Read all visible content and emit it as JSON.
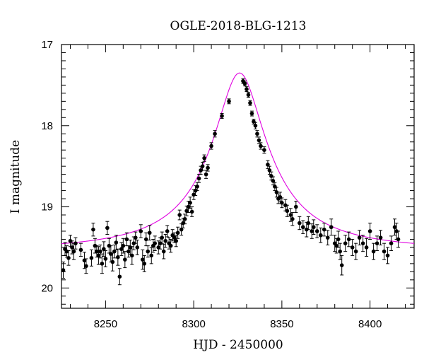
{
  "chart_data": {
    "type": "scatter",
    "title": "OGLE-2018-BLG-1213",
    "xlabel": "HJD - 2450000",
    "ylabel": "I magnitude",
    "xlim": [
      8225,
      8425
    ],
    "ylim": [
      20.25,
      17
    ],
    "y_inverted": true,
    "x_ticks": [
      8250,
      8300,
      8350,
      8400
    ],
    "x_tick_labels": [
      "8250",
      "8300",
      "8350",
      "8400"
    ],
    "y_ticks": [
      17,
      18,
      19,
      20
    ],
    "y_tick_labels": [
      "17",
      "18",
      "19",
      "20"
    ],
    "grid": false,
    "colors": {
      "points": "#000000",
      "model": "#e000e0",
      "frame": "#000000"
    },
    "series": [
      {
        "kind": "points-with-errorbars",
        "points": [
          [
            8226,
            19.78,
            0.1
          ],
          [
            8227,
            19.52,
            0.08
          ],
          [
            8228,
            19.55,
            0.07
          ],
          [
            8229,
            19.63,
            0.09
          ],
          [
            8230,
            19.42,
            0.07
          ],
          [
            8231,
            19.5,
            0.08
          ],
          [
            8232,
            19.55,
            0.1
          ],
          [
            8233,
            19.45,
            0.07
          ],
          [
            8236,
            19.53,
            0.08
          ],
          [
            8238,
            19.66,
            0.1
          ],
          [
            8239,
            19.73,
            0.09
          ],
          [
            8242,
            19.63,
            0.1
          ],
          [
            8243,
            19.28,
            0.08
          ],
          [
            8244,
            19.48,
            0.09
          ],
          [
            8245,
            19.55,
            0.07
          ],
          [
            8246,
            19.6,
            0.11
          ],
          [
            8247,
            19.55,
            0.08
          ],
          [
            8248,
            19.7,
            0.12
          ],
          [
            8249,
            19.52,
            0.09
          ],
          [
            8250,
            19.64,
            0.1
          ],
          [
            8251,
            19.26,
            0.08
          ],
          [
            8252,
            19.48,
            0.09
          ],
          [
            8253,
            19.58,
            0.1
          ],
          [
            8254,
            19.68,
            0.11
          ],
          [
            8255,
            19.55,
            0.08
          ],
          [
            8256,
            19.44,
            0.09
          ],
          [
            8257,
            19.62,
            0.1
          ],
          [
            8258,
            19.86,
            0.1
          ],
          [
            8259,
            19.52,
            0.08
          ],
          [
            8260,
            19.48,
            0.09
          ],
          [
            8261,
            19.65,
            0.1
          ],
          [
            8262,
            19.4,
            0.08
          ],
          [
            8263,
            19.55,
            0.07
          ],
          [
            8264,
            19.5,
            0.09
          ],
          [
            8265,
            19.6,
            0.11
          ],
          [
            8266,
            19.45,
            0.08
          ],
          [
            8267,
            19.38,
            0.07
          ],
          [
            8268,
            19.5,
            0.09
          ],
          [
            8270,
            19.3,
            0.08
          ],
          [
            8271,
            19.65,
            0.12
          ],
          [
            8272,
            19.7,
            0.1
          ],
          [
            8273,
            19.4,
            0.08
          ],
          [
            8274,
            19.55,
            0.07
          ],
          [
            8275,
            19.32,
            0.09
          ],
          [
            8276,
            19.6,
            0.1
          ],
          [
            8277,
            19.48,
            0.08
          ],
          [
            8278,
            19.45,
            0.09
          ],
          [
            8280,
            19.5,
            0.08
          ],
          [
            8281,
            19.45,
            0.07
          ],
          [
            8282,
            19.38,
            0.07
          ],
          [
            8283,
            19.55,
            0.09
          ],
          [
            8284,
            19.42,
            0.08
          ],
          [
            8285,
            19.3,
            0.07
          ],
          [
            8286,
            19.45,
            0.07
          ],
          [
            8287,
            19.48,
            0.08
          ],
          [
            8288,
            19.35,
            0.07
          ],
          [
            8289,
            19.38,
            0.06
          ],
          [
            8290,
            19.42,
            0.07
          ],
          [
            8291,
            19.32,
            0.07
          ],
          [
            8292,
            19.1,
            0.06
          ],
          [
            8293,
            19.28,
            0.07
          ],
          [
            8294,
            19.2,
            0.06
          ],
          [
            8295,
            19.15,
            0.06
          ],
          [
            8296,
            19.05,
            0.06
          ],
          [
            8297,
            19.0,
            0.07
          ],
          [
            8298,
            18.95,
            0.07
          ],
          [
            8299,
            19.06,
            0.06
          ],
          [
            8300,
            18.85,
            0.06
          ],
          [
            8301,
            18.8,
            0.06
          ],
          [
            8302,
            18.75,
            0.05
          ],
          [
            8303,
            18.65,
            0.05
          ],
          [
            8304,
            18.55,
            0.05
          ],
          [
            8305,
            18.5,
            0.05
          ],
          [
            8306,
            18.4,
            0.04
          ],
          [
            8307,
            18.6,
            0.05
          ],
          [
            8308,
            18.52,
            0.04
          ],
          [
            8310,
            18.25,
            0.04
          ],
          [
            8312,
            18.1,
            0.04
          ],
          [
            8316,
            17.88,
            0.03
          ],
          [
            8320,
            17.7,
            0.03
          ],
          [
            8328,
            17.45,
            0.03
          ],
          [
            8329,
            17.48,
            0.03
          ],
          [
            8330,
            17.55,
            0.03
          ],
          [
            8331,
            17.62,
            0.03
          ],
          [
            8332,
            17.72,
            0.03
          ],
          [
            8333,
            17.85,
            0.03
          ],
          [
            8334,
            17.95,
            0.03
          ],
          [
            8335,
            18.0,
            0.04
          ],
          [
            8336,
            18.1,
            0.04
          ],
          [
            8337,
            18.18,
            0.04
          ],
          [
            8338,
            18.25,
            0.04
          ],
          [
            8340,
            18.3,
            0.04
          ],
          [
            8342,
            18.48,
            0.05
          ],
          [
            8343,
            18.55,
            0.05
          ],
          [
            8344,
            18.62,
            0.05
          ],
          [
            8345,
            18.68,
            0.05
          ],
          [
            8346,
            18.75,
            0.05
          ],
          [
            8347,
            18.82,
            0.06
          ],
          [
            8348,
            18.9,
            0.06
          ],
          [
            8349,
            18.88,
            0.06
          ],
          [
            8350,
            18.95,
            0.06
          ],
          [
            8352,
            18.98,
            0.07
          ],
          [
            8353,
            19.05,
            0.07
          ],
          [
            8355,
            19.1,
            0.08
          ],
          [
            8356,
            19.15,
            0.08
          ],
          [
            8358,
            19.0,
            0.07
          ],
          [
            8360,
            19.2,
            0.08
          ],
          [
            8362,
            19.25,
            0.08
          ],
          [
            8364,
            19.28,
            0.09
          ],
          [
            8365,
            19.2,
            0.08
          ],
          [
            8367,
            19.3,
            0.09
          ],
          [
            8368,
            19.25,
            0.09
          ],
          [
            8370,
            19.3,
            0.08
          ],
          [
            8372,
            19.35,
            0.09
          ],
          [
            8374,
            19.28,
            0.08
          ],
          [
            8376,
            19.38,
            0.09
          ],
          [
            8378,
            19.25,
            0.1
          ],
          [
            8380,
            19.45,
            0.1
          ],
          [
            8381,
            19.48,
            0.09
          ],
          [
            8382,
            19.4,
            0.1
          ],
          [
            8383,
            19.55,
            0.1
          ],
          [
            8384,
            19.72,
            0.12
          ],
          [
            8386,
            19.45,
            0.1
          ],
          [
            8388,
            19.4,
            0.09
          ],
          [
            8390,
            19.5,
            0.1
          ],
          [
            8392,
            19.55,
            0.1
          ],
          [
            8394,
            19.38,
            0.09
          ],
          [
            8396,
            19.45,
            0.1
          ],
          [
            8398,
            19.5,
            0.11
          ],
          [
            8400,
            19.3,
            0.1
          ],
          [
            8402,
            19.55,
            0.1
          ],
          [
            8404,
            19.45,
            0.09
          ],
          [
            8406,
            19.38,
            0.09
          ],
          [
            8408,
            19.55,
            0.1
          ],
          [
            8410,
            19.6,
            0.1
          ],
          [
            8412,
            19.45,
            0.09
          ],
          [
            8414,
            19.25,
            0.1
          ],
          [
            8415,
            19.3,
            0.1
          ],
          [
            8416,
            19.4,
            0.1
          ]
        ]
      },
      {
        "kind": "model-curve",
        "peak_x": 8326,
        "peak_mag": 17.35,
        "baseline_mag": 19.55,
        "width_days": 12
      }
    ]
  }
}
